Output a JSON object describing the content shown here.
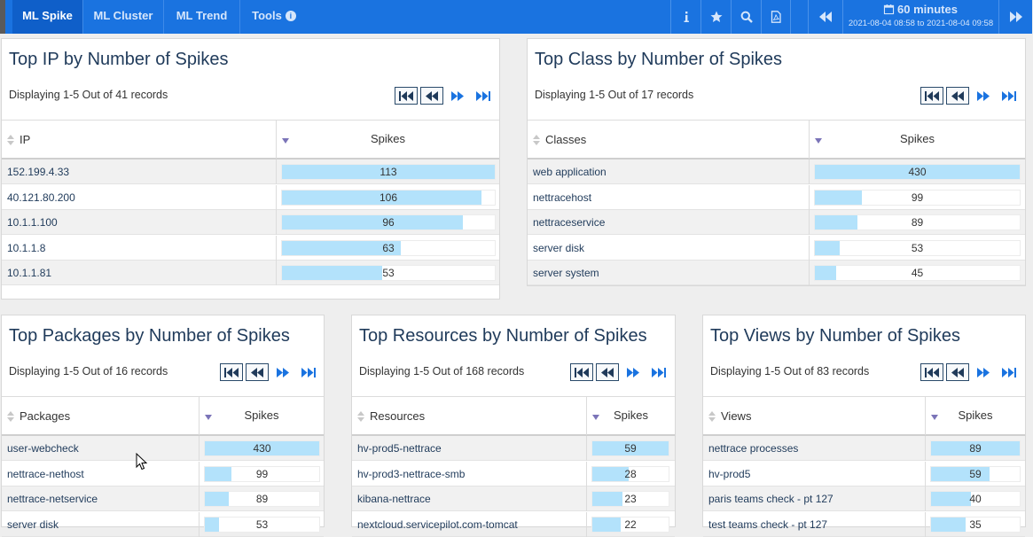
{
  "nav": {
    "tabs": [
      {
        "label": "ML Spike",
        "active": true
      },
      {
        "label": "ML Cluster",
        "active": false
      },
      {
        "label": "ML Trend",
        "active": false
      },
      {
        "label": "Tools",
        "active": false
      }
    ],
    "tools_badge": "i",
    "actions": [
      "info-icon",
      "star-icon",
      "search-icon",
      "pdf-icon"
    ]
  },
  "time": {
    "duration": "60 minutes",
    "range": "2021-08-04 08:58 to 2021-08-04 09:58"
  },
  "colors": {
    "accent": "#1a73e0",
    "bar": "#b3e2fb",
    "title": "#1f3a5a"
  },
  "panels": {
    "ip": {
      "title": "Top IP by Number of Spikes",
      "count": "Displaying 1-5 Out of 41 records",
      "col_name": "IP",
      "col_value": "Spikes",
      "max": 113,
      "rows": [
        {
          "name": "152.199.4.33",
          "value": 113
        },
        {
          "name": "40.121.80.200",
          "value": 106
        },
        {
          "name": "10.1.1.100",
          "value": 96
        },
        {
          "name": "10.1.1.8",
          "value": 63
        },
        {
          "name": "10.1.1.81",
          "value": 53
        }
      ]
    },
    "classes": {
      "title": "Top Class by Number of Spikes",
      "count": "Displaying 1-5 Out of 17 records",
      "col_name": "Classes",
      "col_value": "Spikes",
      "max": 430,
      "rows": [
        {
          "name": "web application",
          "value": 430
        },
        {
          "name": "nettracehost",
          "value": 99
        },
        {
          "name": "nettraceservice",
          "value": 89
        },
        {
          "name": "server disk",
          "value": 53
        },
        {
          "name": "server system",
          "value": 45
        }
      ]
    },
    "packages": {
      "title": "Top Packages by Number of Spikes",
      "count": "Displaying 1-5 Out of 16 records",
      "col_name": "Packages",
      "col_value": "Spikes",
      "max": 430,
      "rows": [
        {
          "name": "user-webcheck",
          "value": 430
        },
        {
          "name": "nettrace-nethost",
          "value": 99
        },
        {
          "name": "nettrace-netservice",
          "value": 89
        },
        {
          "name": "server disk",
          "value": 53
        }
      ]
    },
    "resources": {
      "title": "Top Resources by Number of Spikes",
      "count": "Displaying 1-5 Out of 168 records",
      "col_name": "Resources",
      "col_value": "Spikes",
      "max": 59,
      "rows": [
        {
          "name": "hv-prod5-nettrace",
          "value": 59
        },
        {
          "name": "hv-prod3-nettrace-smb",
          "value": 28
        },
        {
          "name": "kibana-nettrace",
          "value": 23
        },
        {
          "name": "nextcloud.servicepilot.com-tomcat",
          "value": 22
        }
      ]
    },
    "views": {
      "title": "Top Views by Number of Spikes",
      "count": "Displaying 1-5 Out of 83 records",
      "col_name": "Views",
      "col_value": "Spikes",
      "max": 89,
      "rows": [
        {
          "name": "nettrace processes",
          "value": 89
        },
        {
          "name": "hv-prod5",
          "value": 59
        },
        {
          "name": "paris teams check - pt 127",
          "value": 40
        },
        {
          "name": "test teams check - pt 127",
          "value": 35
        }
      ]
    }
  }
}
